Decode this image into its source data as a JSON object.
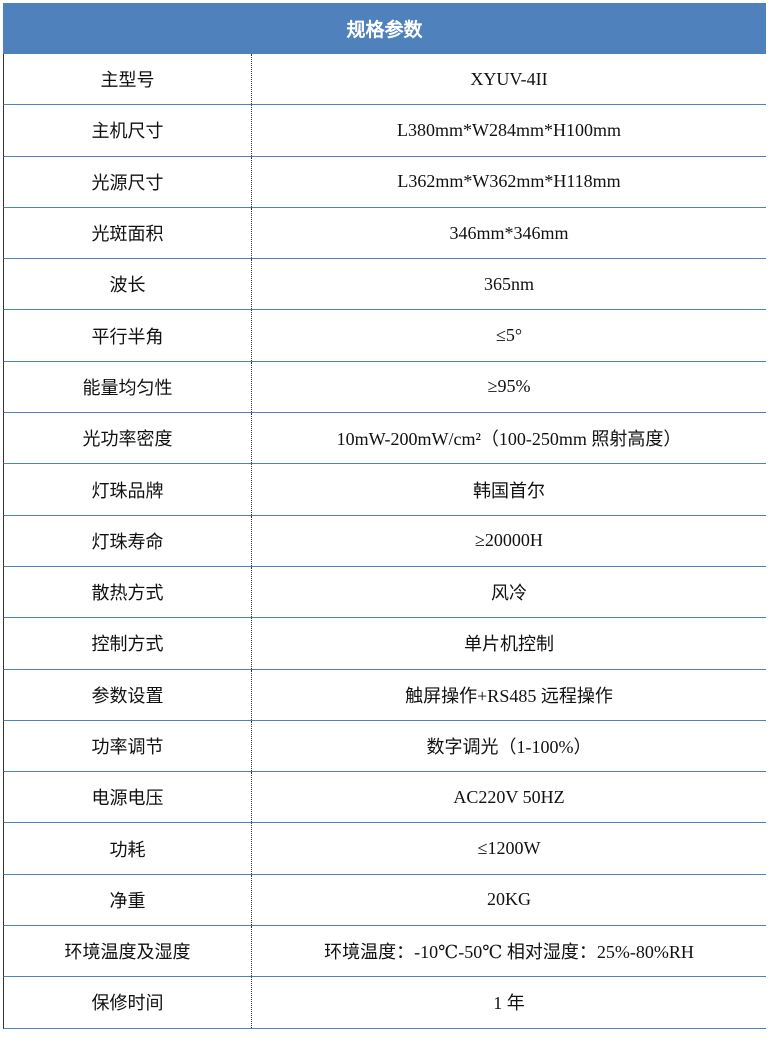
{
  "header": {
    "title": "规格参数"
  },
  "table": {
    "rows": [
      [
        "主型号",
        "XYUV-4II"
      ],
      [
        "主机尺寸",
        "L380mm*W284mm*H100mm"
      ],
      [
        "光源尺寸",
        "L362mm*W362mm*H118mm"
      ],
      [
        "光斑面积",
        "346mm*346mm"
      ],
      [
        "波长",
        "365nm"
      ],
      [
        "平行半角",
        "≤5°"
      ],
      [
        "能量均匀性",
        "≥95%"
      ],
      [
        "光功率密度",
        "10mW-200mW/cm²（100-250mm 照射高度）"
      ],
      [
        "灯珠品牌",
        "韩国首尔"
      ],
      [
        "灯珠寿命",
        "≥20000H"
      ],
      [
        "散热方式",
        "风冷"
      ],
      [
        "控制方式",
        "单片机控制"
      ],
      [
        "参数设置",
        "触屏操作+RS485 远程操作"
      ],
      [
        "功率调节",
        "数字调光（1-100%）"
      ],
      [
        "电源电压",
        "AC220V 50HZ"
      ],
      [
        "功耗",
        "≤1200W"
      ],
      [
        "净重",
        "20KG"
      ],
      [
        "环境温度及湿度",
        "环境温度：-10℃-50℃ 相对湿度：25%-80%RH"
      ],
      [
        "保修时间",
        "1 年"
      ]
    ]
  }
}
